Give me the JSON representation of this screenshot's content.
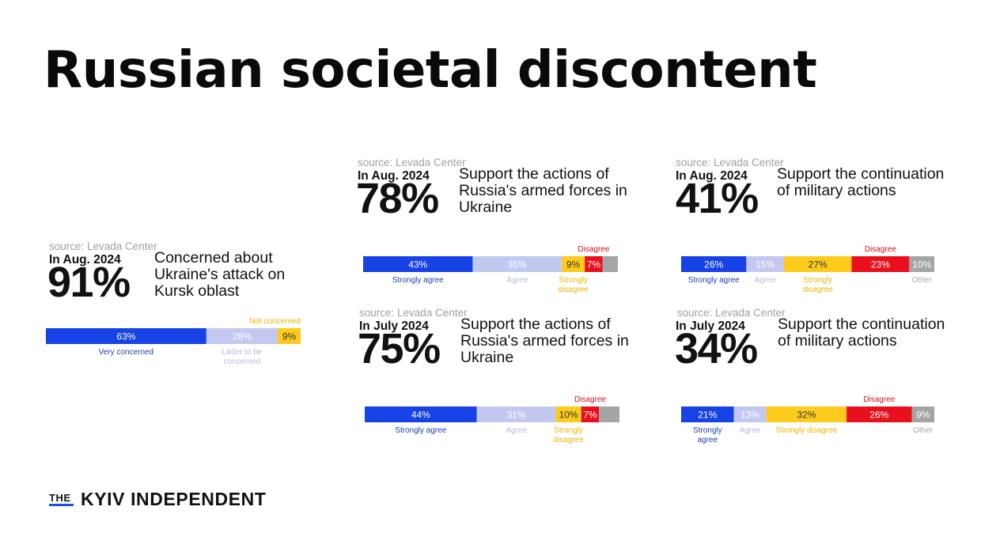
{
  "title": "Russian societal discontent",
  "brand": {
    "prefix": "THE",
    "name": "KYIV INDEPENDENT"
  },
  "colors": {
    "dark_blue": "#1742e6",
    "light_blue": "#c3c8f0",
    "yellow": "#fccb1c",
    "red": "#e8101d",
    "gray": "#a5a5a5"
  },
  "chart_data": [
    {
      "type": "bar",
      "source": "source: Levada Center",
      "period": "In Aug. 2024",
      "headline": "91%",
      "question": "Concerned about Ukraine's attack on Kursk oblast",
      "segments": [
        {
          "value": 63,
          "label": "63%",
          "name": "Very concerned",
          "color": "dark_blue"
        },
        {
          "value": 28,
          "label": "28%",
          "name": "Liklier to be concerned",
          "color": "light_blue"
        },
        {
          "value": 9,
          "label": "9%",
          "name": "Not concerned",
          "color": "yellow"
        }
      ]
    },
    {
      "type": "bar",
      "source": "source: Levada Center",
      "period": "In Aug. 2024",
      "headline": "78%",
      "question": "Support the actions of Russia's armed forces in Ukraine",
      "segments": [
        {
          "value": 43,
          "label": "43%",
          "name": "Strongly agree",
          "color": "dark_blue"
        },
        {
          "value": 35,
          "label": "35%",
          "name": "Agree",
          "color": "light_blue"
        },
        {
          "value": 9,
          "label": "9%",
          "name": "Strongly disagree",
          "color": "yellow"
        },
        {
          "value": 7,
          "label": "7%",
          "name": "Disagree",
          "color": "red"
        },
        {
          "value": 6,
          "label": "",
          "name": "",
          "color": "gray"
        }
      ]
    },
    {
      "type": "bar",
      "source": "source: Levada Center",
      "period": "In Aug. 2024",
      "headline": "41%",
      "question": "Support the continuation of military actions",
      "segments": [
        {
          "value": 26,
          "label": "26%",
          "name": "Strongly agree",
          "color": "dark_blue"
        },
        {
          "value": 15,
          "label": "15%",
          "name": "Agree",
          "color": "light_blue"
        },
        {
          "value": 27,
          "label": "27%",
          "name": "Strongly disagree",
          "color": "yellow"
        },
        {
          "value": 23,
          "label": "23%",
          "name": "Disagree",
          "color": "red"
        },
        {
          "value": 10,
          "label": "10%",
          "name": "Other",
          "color": "gray"
        }
      ]
    },
    {
      "type": "bar",
      "source": "source: Levada Center",
      "period": "In July 2024",
      "headline": "75%",
      "question": "Support the actions of Russia's armed forces in Ukraine",
      "segments": [
        {
          "value": 44,
          "label": "44%",
          "name": "Strongly agree",
          "color": "dark_blue"
        },
        {
          "value": 31,
          "label": "31%",
          "name": "Agree",
          "color": "light_blue"
        },
        {
          "value": 10,
          "label": "10%",
          "name": "Strongly disagree",
          "color": "yellow"
        },
        {
          "value": 7,
          "label": "7%",
          "name": "Disagree",
          "color": "red"
        },
        {
          "value": 8,
          "label": "",
          "name": "",
          "color": "gray"
        }
      ]
    },
    {
      "type": "bar",
      "source": "source: Levada Center",
      "period": "In July 2024",
      "headline": "34%",
      "question": "Support the continuation of military actions",
      "segments": [
        {
          "value": 21,
          "label": "21%",
          "name": "Strongly agree",
          "color": "dark_blue"
        },
        {
          "value": 13,
          "label": "13%",
          "name": "Agree",
          "color": "light_blue"
        },
        {
          "value": 32,
          "label": "32%",
          "name": "Strongly disagree",
          "color": "yellow"
        },
        {
          "value": 26,
          "label": "26%",
          "name": "Disagree",
          "color": "red"
        },
        {
          "value": 9,
          "label": "9%",
          "name": "Other",
          "color": "gray"
        }
      ]
    }
  ]
}
